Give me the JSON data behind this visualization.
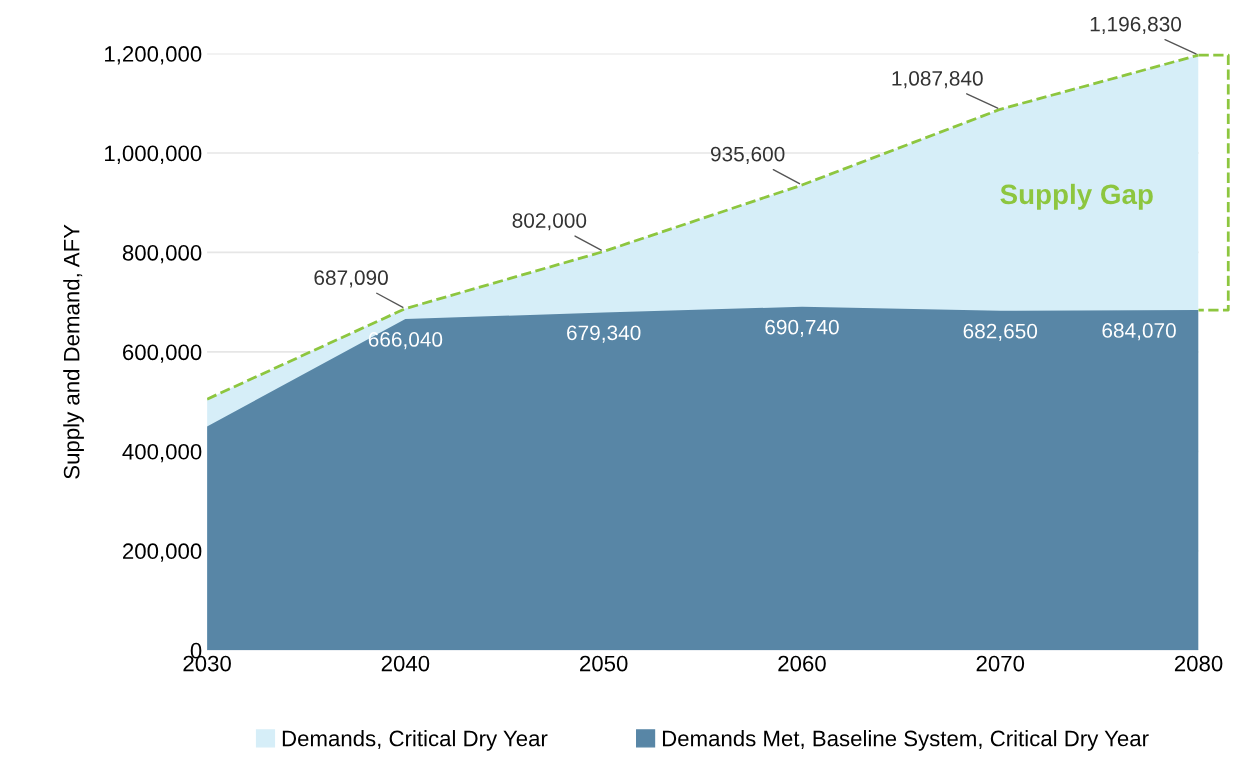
{
  "chart_data": {
    "type": "area",
    "ylabel": "Supply and Demand, AFY",
    "x": [
      2030,
      2040,
      2050,
      2060,
      2070,
      2080
    ],
    "series": [
      {
        "name": "Demands, Critical Dry Year",
        "color": "#d6eef8",
        "line_style": "dashed",
        "values": [
          505000,
          687090,
          802000,
          935600,
          1087840,
          1196830
        ],
        "value_labels": [
          null,
          "687,090",
          "802,000",
          "935,600",
          "1,087,840",
          "1,196,830"
        ]
      },
      {
        "name": "Demands Met, Baseline System, Critical Dry Year",
        "color": "#5886a6",
        "values": [
          450000,
          666040,
          679340,
          690740,
          682650,
          684070
        ],
        "value_labels": [
          null,
          "666,040",
          "679,340",
          "690,740",
          "682,650",
          "684,070"
        ]
      }
    ],
    "xlim": [
      2030,
      2080
    ],
    "xticks": [
      2030,
      2040,
      2050,
      2060,
      2070,
      2080
    ],
    "ylim": [
      0,
      1200000
    ],
    "yticks": [
      {
        "value": 0,
        "label": "0"
      },
      {
        "value": 200000,
        "label": "200,000"
      },
      {
        "value": 400000,
        "label": "400,000"
      },
      {
        "value": 600000,
        "label": "600,000"
      },
      {
        "value": 800000,
        "label": "800,000"
      },
      {
        "value": 1000000,
        "label": "1,000,000"
      },
      {
        "value": 1200000,
        "label": "1,200,000"
      }
    ],
    "grid": "y",
    "legend": "bottom",
    "annotations": [
      "Supply Gap"
    ]
  }
}
